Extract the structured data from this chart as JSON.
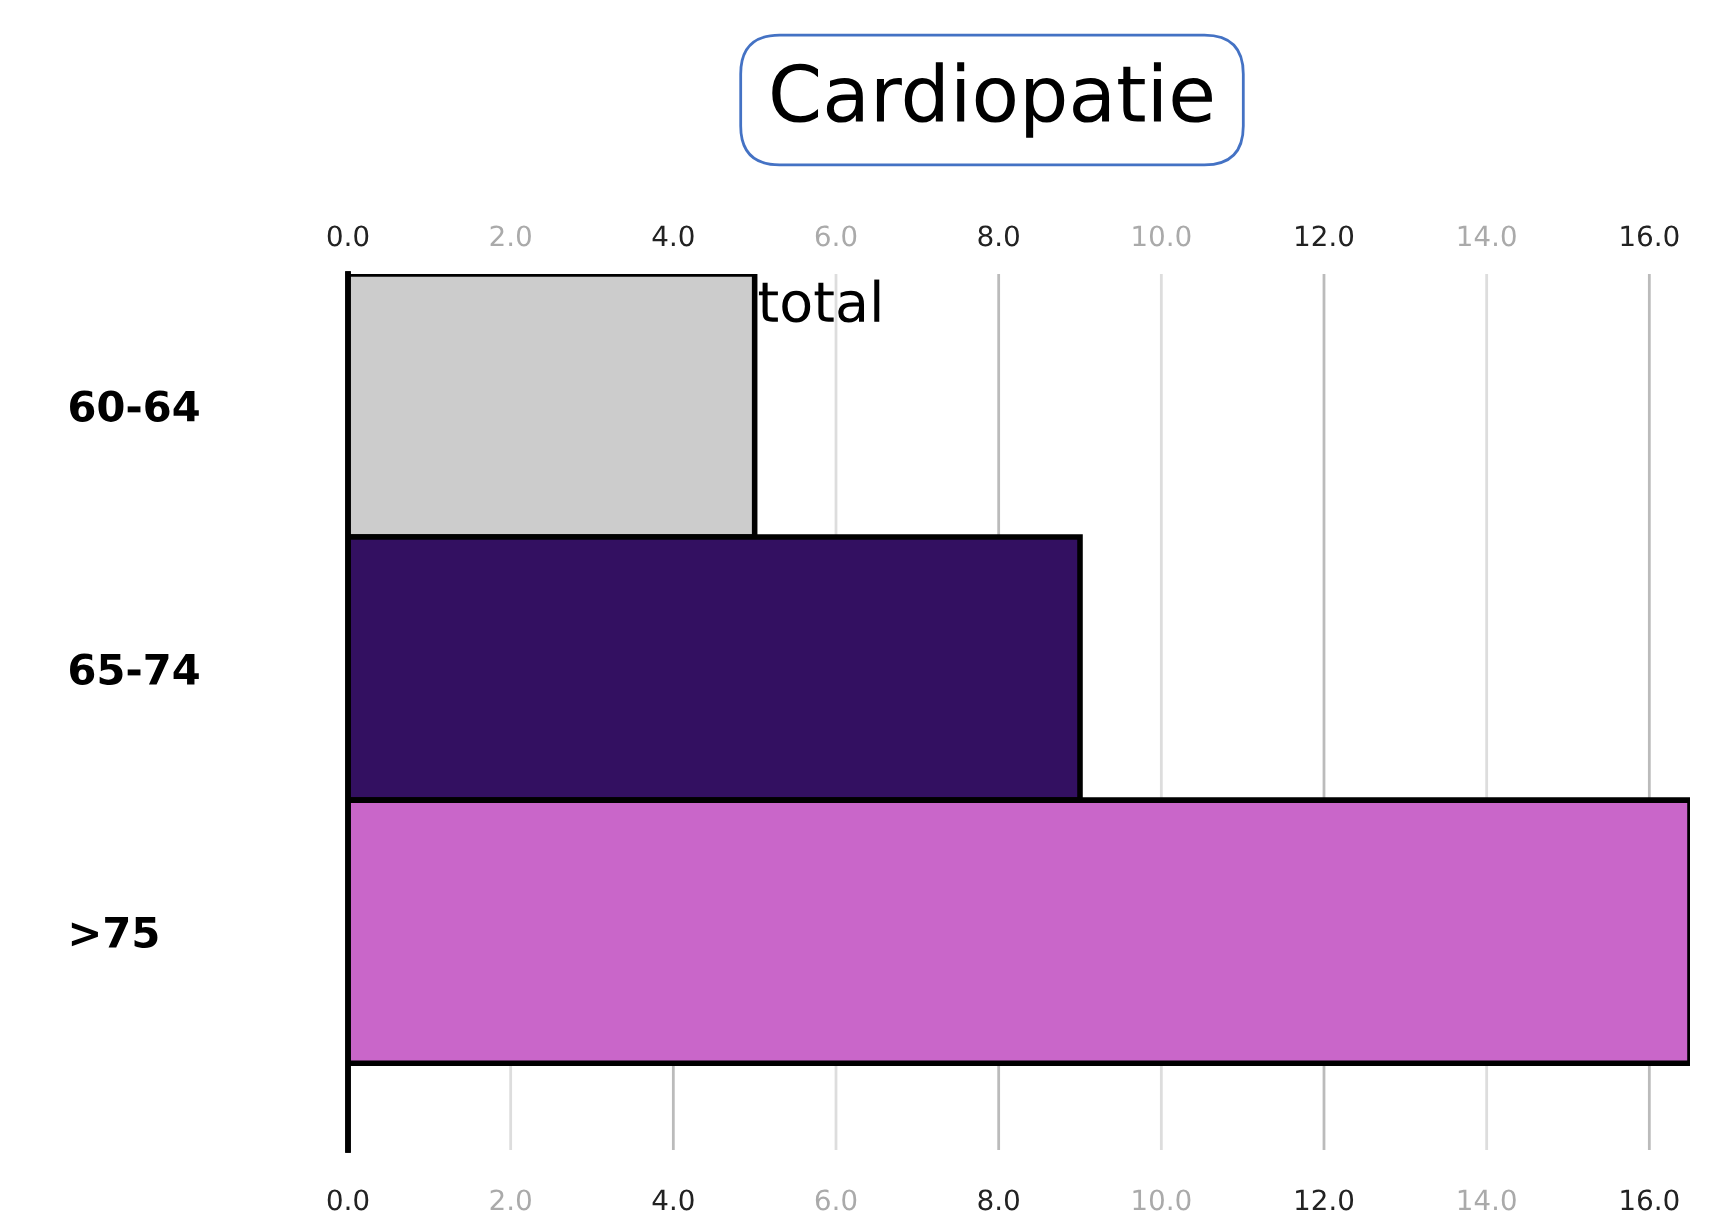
{
  "chart_data": {
    "type": "bar",
    "orientation": "horizontal",
    "title": "Cardiopatie",
    "categories": [
      "60-64",
      "65-74",
      ">75"
    ],
    "values": [
      5.0,
      9.0,
      16.5
    ],
    "colors": [
      "#cccccc",
      "#331061",
      "#c966c9"
    ],
    "xlim": [
      0,
      16.5
    ],
    "xticks": [
      {
        "value": 0,
        "label": "0.0"
      },
      {
        "value": 2,
        "label": "2.0"
      },
      {
        "value": 4,
        "label": "4.0"
      },
      {
        "value": 6,
        "label": "6.0"
      },
      {
        "value": 8,
        "label": "8.0"
      },
      {
        "value": 10,
        "label": "10.0"
      },
      {
        "value": 12,
        "label": "12.0"
      },
      {
        "value": 14,
        "label": "14.0"
      },
      {
        "value": 16,
        "label": "16.0"
      }
    ],
    "x2lim": [
      0,
      16.5
    ],
    "x2ticks": [
      {
        "value": 0,
        "label": "0.0"
      },
      {
        "value": 2,
        "label": "2.0"
      },
      {
        "value": 4,
        "label": "4.0"
      },
      {
        "value": 6,
        "label": "6.0"
      },
      {
        "value": 8,
        "label": "8.0"
      },
      {
        "value": 10,
        "label": "10.0"
      },
      {
        "value": 12,
        "label": "12.0"
      },
      {
        "value": 14,
        "label": "14.0"
      },
      {
        "value": 16,
        "label": "16.0"
      }
    ],
    "annotations": [
      {
        "text": "total",
        "x": 5.0,
        "y": "60-64"
      }
    ],
    "grid": "x",
    "legend": false
  }
}
